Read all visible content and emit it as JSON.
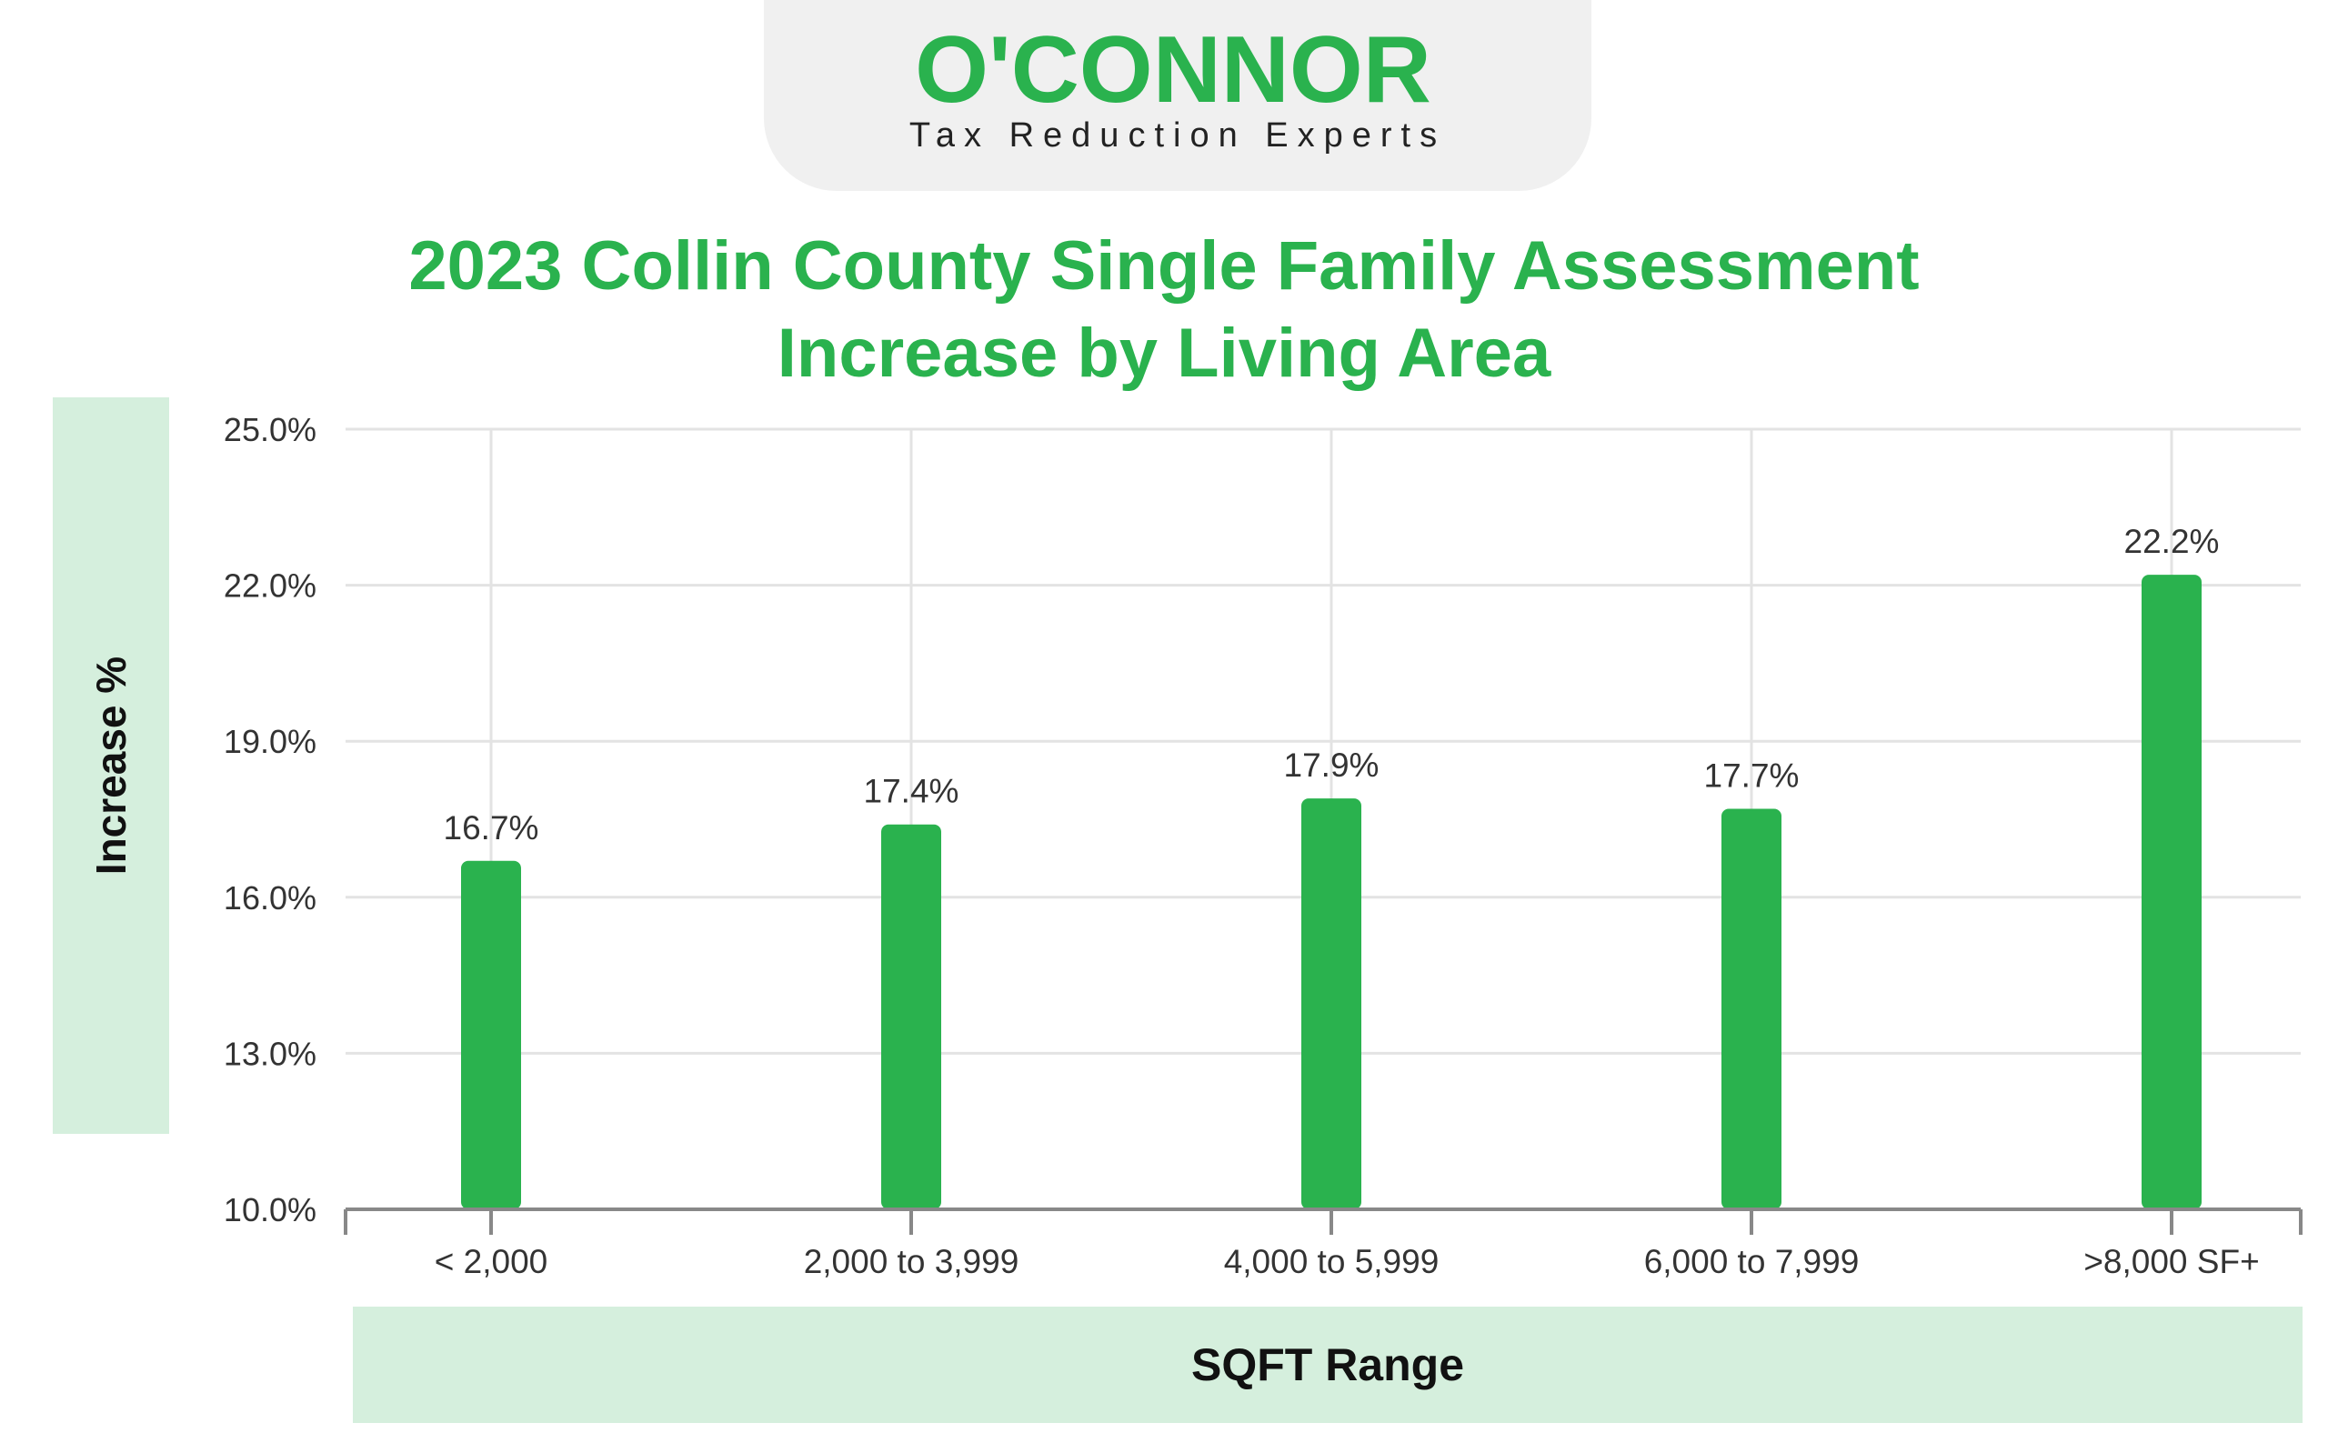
{
  "logo": {
    "brand": "O'CONNOR",
    "tagline": "Tax Reduction Experts",
    "color": "#2ab24e"
  },
  "chart_data": {
    "type": "bar",
    "title": "2023 Collin County Single Family Assessment Increase by Living Area",
    "xlabel": "SQFT Range",
    "ylabel": "Increase %",
    "categories": [
      "< 2,000",
      "2,000 to 3,999",
      "4,000 to 5,999",
      "6,000 to 7,999",
      ">8,000 SF+"
    ],
    "values": [
      16.7,
      17.4,
      17.9,
      17.7,
      22.2
    ],
    "value_labels": [
      "16.7%",
      "17.4%",
      "17.9%",
      "17.7%",
      "22.2%"
    ],
    "ylim": [
      10.0,
      25.0
    ],
    "yticks": [
      10.0,
      13.0,
      16.0,
      19.0,
      22.0,
      25.0
    ],
    "ytick_labels": [
      "10.0%",
      "13.0%",
      "16.0%",
      "19.0%",
      "22.0%",
      "25.0%"
    ],
    "grid": true,
    "bar_color": "#2ab24e"
  }
}
